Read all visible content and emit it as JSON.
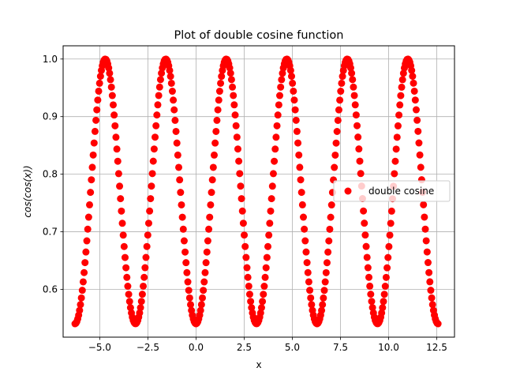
{
  "chart_data": {
    "type": "scatter",
    "title": "Plot of double cosine function",
    "xlabel": "x",
    "ylabel": "cos(cos(x))",
    "xlim": [
      -6.9,
      13.42
    ],
    "ylim": [
      0.517,
      1.023
    ],
    "xticks": [
      -5.0,
      -2.5,
      0.0,
      2.5,
      5.0,
      7.5,
      10.0,
      12.5
    ],
    "xtick_labels": [
      "−5.0",
      "−2.5",
      "0.0",
      "2.5",
      "5.0",
      "7.5",
      "10.0",
      "12.5"
    ],
    "yticks": [
      0.6,
      0.7,
      0.8,
      0.9,
      1.0
    ],
    "ytick_labels": [
      "0.6",
      "0.7",
      "0.8",
      "0.9",
      "1.0"
    ],
    "grid": true,
    "legend_placement": "center-right",
    "series": [
      {
        "name": "double cosine",
        "color": "#ff0000",
        "marker": "circle",
        "function": "cos(cos(x))",
        "x_range": [
          -6.283,
          12.566
        ],
        "n_points": 400
      }
    ]
  }
}
